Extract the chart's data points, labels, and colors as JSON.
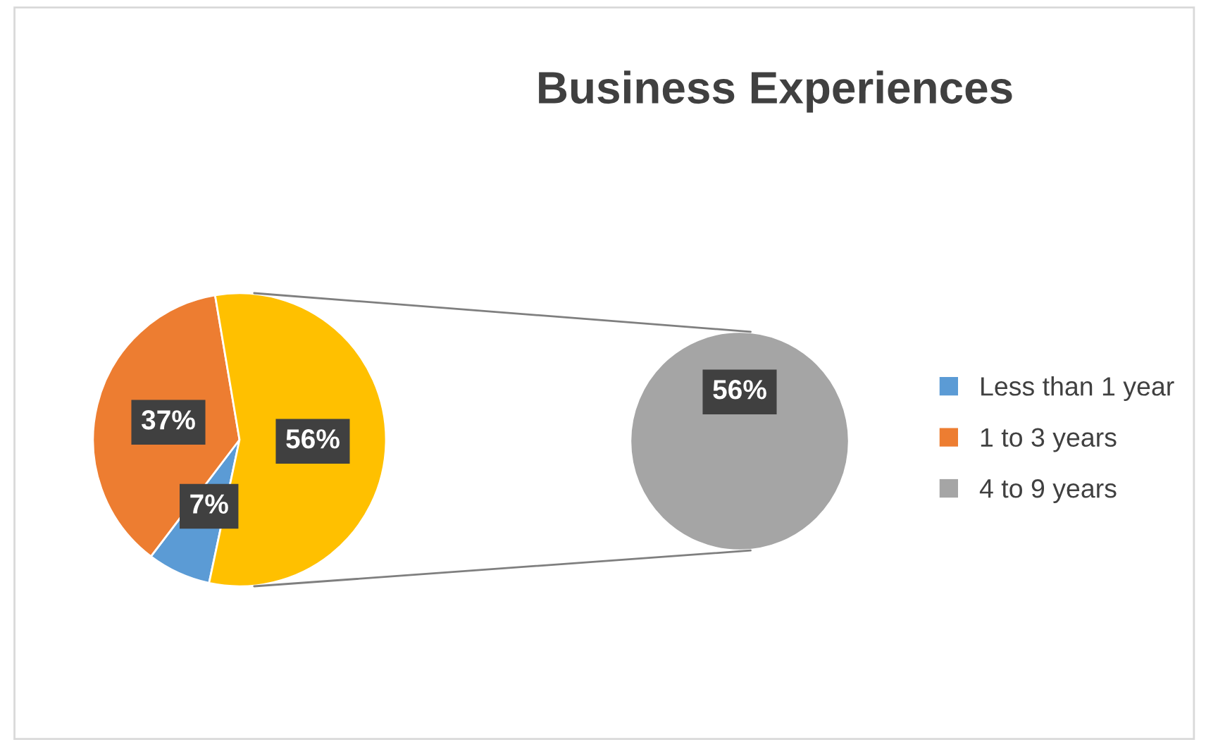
{
  "chart_data": [
    {
      "type": "pie",
      "title": "Business Experiences",
      "categories": [
        "Less than 1 year",
        "1 to 3 years",
        null
      ],
      "values": [
        7,
        37,
        56
      ],
      "colors": [
        "#5b9bd5",
        "#ed7d31",
        "#ffc000"
      ],
      "value_labels": [
        "7%",
        "37%",
        "56%"
      ],
      "legend": "right"
    },
    {
      "type": "pie",
      "categories": [
        "4 to 9 years"
      ],
      "values": [
        56
      ],
      "colors": [
        "#a5a5a5"
      ],
      "value_labels": [
        "56%"
      ],
      "legend": "right"
    }
  ]
}
